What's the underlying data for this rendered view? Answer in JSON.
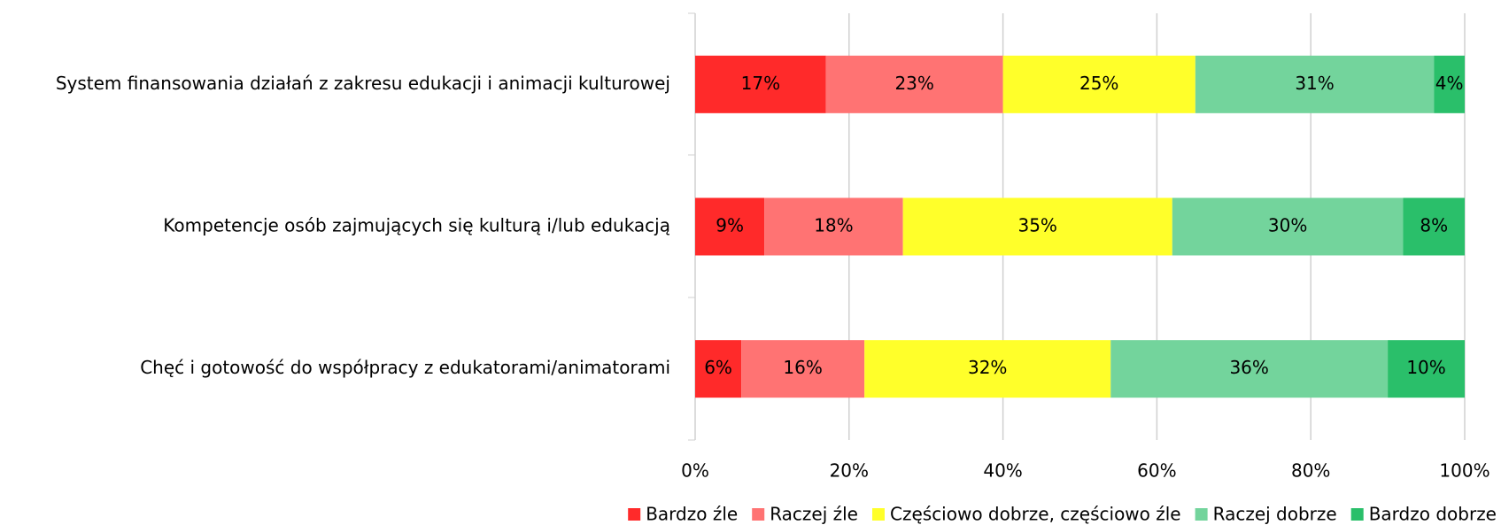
{
  "chart_data": {
    "type": "stacked_bar_horizontal",
    "categories": [
      "System finansowania działań z zakresu edukacji i animacji kulturowej",
      "Kompetencje osób zajmujących się kulturą i/lub edukacją",
      "Chęć i gotowość do współpracy z edukatorami/animatorami"
    ],
    "series": [
      {
        "name": "Bardzo źle",
        "color": "#ff2a2a",
        "values": [
          17,
          9,
          6
        ],
        "value_labels": [
          "17%",
          "9%",
          "6%"
        ]
      },
      {
        "name": "Raczej źle",
        "color": "#ff7373",
        "values": [
          23,
          18,
          16
        ],
        "value_labels": [
          "23%",
          "18%",
          "16%"
        ]
      },
      {
        "name": "Częściowo dobrze, częściowo źle",
        "color": "#ffff2a",
        "values": [
          25,
          35,
          32
        ],
        "value_labels": [
          "25%",
          "35%",
          "32%"
        ]
      },
      {
        "name": "Raczej dobrze",
        "color": "#73d49c",
        "values": [
          31,
          30,
          36
        ],
        "value_labels": [
          "31%",
          "30%",
          "36%"
        ]
      },
      {
        "name": "Bardzo dobrze",
        "color": "#2abf6a",
        "values": [
          4,
          8,
          10
        ],
        "value_labels": [
          "4%",
          "8%",
          "10%"
        ]
      }
    ],
    "xlim": [
      0,
      100
    ],
    "xticks": [
      {
        "value": 0,
        "label": "0%"
      },
      {
        "value": 20,
        "label": "20%"
      },
      {
        "value": 40,
        "label": "40%"
      },
      {
        "value": 60,
        "label": "60%"
      },
      {
        "value": 80,
        "label": "80%"
      },
      {
        "value": 100,
        "label": "100%"
      }
    ],
    "grid": true,
    "legend": "bottom"
  }
}
